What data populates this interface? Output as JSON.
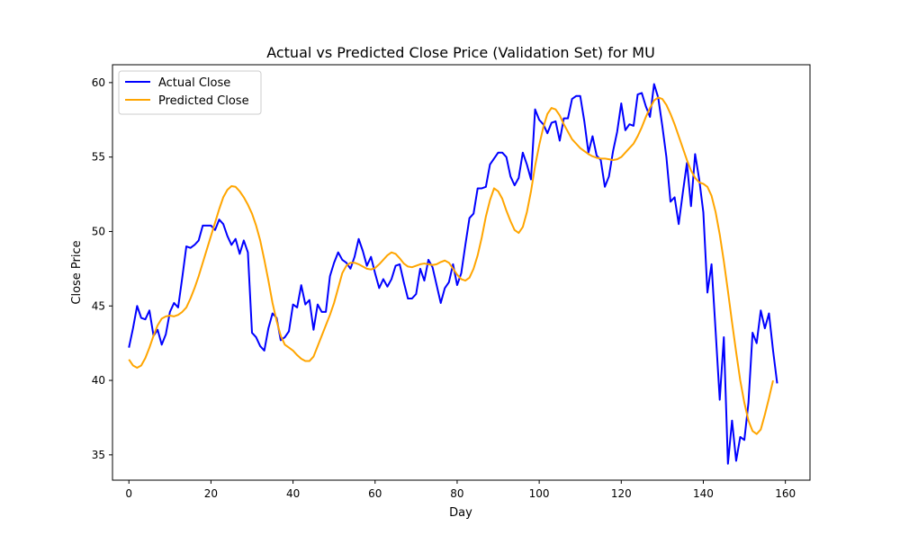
{
  "chart_data": {
    "type": "line",
    "title": "Actual vs Predicted Close Price (Validation Set) for MU",
    "xlabel": "Day",
    "ylabel": "Close Price",
    "xlim": [
      -4,
      166
    ],
    "ylim": [
      33.3,
      61.2
    ],
    "x_ticks": [
      0,
      20,
      40,
      60,
      80,
      100,
      120,
      140,
      160
    ],
    "y_ticks": [
      35,
      40,
      45,
      50,
      55,
      60
    ],
    "grid": false,
    "legend_position": "top-left",
    "series": [
      {
        "name": "Actual Close",
        "color": "#0000ff",
        "values": [
          42.2,
          43.5,
          45.0,
          44.2,
          44.1,
          44.7,
          43.0,
          43.4,
          42.4,
          43.1,
          44.6,
          45.2,
          44.9,
          46.9,
          49.0,
          48.9,
          49.1,
          49.4,
          50.4,
          50.4,
          50.4,
          50.1,
          50.8,
          50.5,
          49.7,
          49.1,
          49.5,
          48.5,
          49.4,
          48.6,
          43.2,
          42.9,
          42.3,
          42.0,
          43.5,
          44.5,
          44.2,
          42.7,
          42.9,
          43.3,
          45.1,
          44.9,
          46.4,
          45.1,
          45.4,
          43.4,
          45.1,
          44.6,
          44.6,
          47.0,
          47.9,
          48.6,
          48.1,
          47.9,
          47.5,
          48.3,
          49.5,
          48.7,
          47.7,
          48.3,
          47.2,
          46.2,
          46.8,
          46.3,
          46.8,
          47.7,
          47.8,
          46.6,
          45.5,
          45.5,
          45.8,
          47.5,
          46.7,
          48.1,
          47.6,
          46.4,
          45.2,
          46.2,
          46.6,
          47.8,
          46.4,
          47.2,
          49.1,
          50.9,
          51.2,
          52.9,
          52.9,
          53.0,
          54.5,
          54.9,
          55.3,
          55.3,
          55.0,
          53.7,
          53.1,
          53.6,
          55.3,
          54.5,
          53.5,
          58.2,
          57.5,
          57.2,
          56.6,
          57.3,
          57.4,
          56.1,
          57.6,
          57.6,
          58.9,
          59.1,
          59.1,
          57.4,
          55.3,
          56.4,
          55.1,
          54.8,
          53.0,
          53.7,
          55.4,
          56.7,
          58.6,
          56.8,
          57.2,
          57.1,
          59.2,
          59.3,
          58.4,
          57.7,
          59.9,
          59.0,
          57.1,
          55.0,
          52.0,
          52.3,
          50.5,
          52.6,
          54.6,
          51.7,
          55.2,
          53.5,
          51.3,
          45.9,
          47.8,
          43.3,
          38.7,
          42.9,
          34.4,
          37.3,
          34.6,
          36.2,
          36.0,
          38.5,
          43.2,
          42.5,
          44.7,
          43.5,
          44.5,
          42.0,
          39.8
        ]
      },
      {
        "name": "Predicted Close",
        "color": "#ffa500",
        "values": [
          41.4,
          41.0,
          40.85,
          41.0,
          41.5,
          42.2,
          43.0,
          43.7,
          44.15,
          44.3,
          44.35,
          44.3,
          44.4,
          44.6,
          44.9,
          45.5,
          46.2,
          47.0,
          47.9,
          48.8,
          49.7,
          50.6,
          51.5,
          52.3,
          52.8,
          53.05,
          53.0,
          52.7,
          52.3,
          51.8,
          51.2,
          50.4,
          49.4,
          48.1,
          46.7,
          45.2,
          44.0,
          43.0,
          42.4,
          42.2,
          42.0,
          41.7,
          41.45,
          41.3,
          41.3,
          41.6,
          42.3,
          43.0,
          43.7,
          44.4,
          45.2,
          46.2,
          47.2,
          47.7,
          47.9,
          47.9,
          47.8,
          47.65,
          47.5,
          47.45,
          47.55,
          47.8,
          48.1,
          48.4,
          48.6,
          48.5,
          48.2,
          47.85,
          47.65,
          47.6,
          47.7,
          47.8,
          47.85,
          47.8,
          47.75,
          47.8,
          47.95,
          48.05,
          47.9,
          47.5,
          47.1,
          46.8,
          46.7,
          46.9,
          47.5,
          48.4,
          49.6,
          51.0,
          52.1,
          52.9,
          52.7,
          52.2,
          51.4,
          50.7,
          50.1,
          49.9,
          50.3,
          51.3,
          52.7,
          54.4,
          55.8,
          57.0,
          57.9,
          58.3,
          58.2,
          57.8,
          57.2,
          56.7,
          56.2,
          55.9,
          55.6,
          55.4,
          55.2,
          55.05,
          54.95,
          54.9,
          54.9,
          54.85,
          54.8,
          54.85,
          55.0,
          55.3,
          55.6,
          55.9,
          56.4,
          57.0,
          57.7,
          58.3,
          58.8,
          59.0,
          58.9,
          58.5,
          57.9,
          57.2,
          56.4,
          55.6,
          54.8,
          54.1,
          53.6,
          53.3,
          53.2,
          53.0,
          52.4,
          51.3,
          49.8,
          48.0,
          46.0,
          43.9,
          41.9,
          40.0,
          38.5,
          37.3,
          36.6,
          36.4,
          36.7,
          37.7,
          38.8,
          40.0
        ]
      }
    ]
  }
}
